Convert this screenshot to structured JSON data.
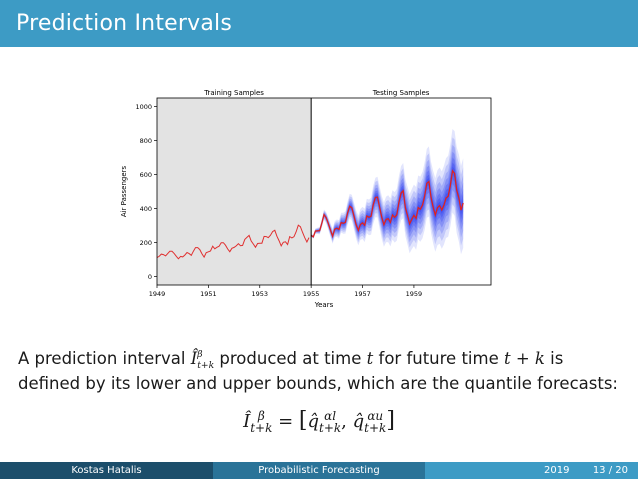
{
  "slide": {
    "title": "Prediction Intervals"
  },
  "footer": {
    "author": "Kostas Hatalis",
    "topic": "Probabilistic Forecasting",
    "year": "2019",
    "page": "13 / 20"
  },
  "body": {
    "line1_pre": "A prediction interval ",
    "line1_mid": " produced at time ",
    "t": "t",
    "line1_mid2": " for future time ",
    "tk": "t + k",
    "line1_post": " is",
    "line2": "defined by its lower and upper bounds, which are the quantile forecasts:",
    "I": "Î",
    "beta": "β",
    "sub": "t+k",
    "eq": " = ",
    "lbr": "[",
    "q": "q̂",
    "alpha_l": "αl",
    "alpha_u": "αu",
    "comma": ", ",
    "rbr": "]"
  },
  "chart_data": {
    "type": "line",
    "title_left": "Training Samples",
    "title_right": "Testing Samples",
    "xlabel": "Years",
    "ylabel": "Air Passengers",
    "xlim": [
      1949,
      1962
    ],
    "ylim": [
      -50,
      1050
    ],
    "xticks": [
      1949,
      1951,
      1953,
      1955,
      1957,
      1959
    ],
    "yticks": [
      0,
      200,
      400,
      600,
      800,
      1000
    ],
    "split_year": 1955,
    "colors": {
      "train": "#e03030",
      "test": "#dd2222",
      "band": "#2233ee",
      "shade": "#e3e3e3"
    },
    "train": [
      112,
      118,
      132,
      129,
      121,
      135,
      148,
      148,
      136,
      119,
      104,
      118,
      115,
      126,
      141,
      135,
      125,
      149,
      170,
      170,
      158,
      133,
      114,
      140,
      145,
      150,
      178,
      163,
      172,
      178,
      199,
      199,
      184,
      162,
      146,
      166,
      171,
      180,
      193,
      181,
      183,
      218,
      230,
      242,
      209,
      191,
      172,
      194,
      196,
      196,
      236,
      235,
      229,
      243,
      264,
      272,
      237,
      211,
      180,
      201,
      204,
      188,
      235,
      227,
      234,
      264,
      302,
      293,
      259,
      229,
      203,
      229
    ],
    "test": [
      242,
      233,
      267,
      269,
      270,
      315,
      364,
      347,
      312,
      274,
      237,
      278,
      284,
      277,
      317,
      313,
      318,
      374,
      413,
      405,
      355,
      306,
      271,
      306,
      315,
      301,
      356,
      348,
      355,
      422,
      465,
      467,
      404,
      347,
      305,
      336,
      340,
      318,
      362,
      348,
      363,
      435,
      491,
      505,
      404,
      359,
      310,
      337,
      360,
      342,
      406,
      396,
      420,
      472,
      548,
      559,
      463,
      407,
      362,
      405,
      417,
      391,
      419,
      461,
      472,
      535,
      622,
      606,
      508,
      461,
      390,
      432
    ]
  }
}
